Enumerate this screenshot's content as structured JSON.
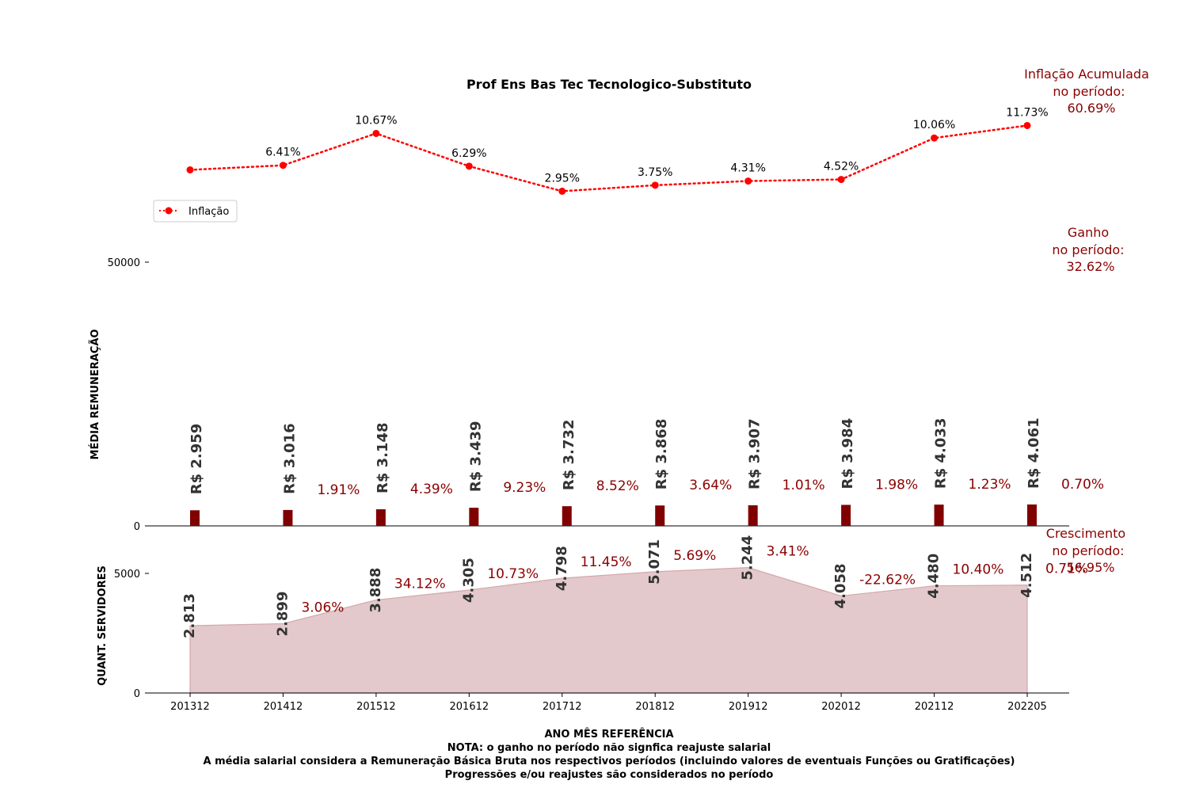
{
  "chart_data": {
    "type": "combo",
    "title": "Prof Ens Bas Tec Tecnologico-Substituto",
    "categories": [
      "201312",
      "201412",
      "201512",
      "201612",
      "201712",
      "201812",
      "201912",
      "202012",
      "202112",
      "202205"
    ],
    "inflation": {
      "name": "Inflação",
      "values": [
        null,
        6.41,
        10.67,
        6.29,
        2.95,
        3.75,
        4.31,
        4.52,
        10.06,
        11.73
      ],
      "labels": [
        "",
        "6.41%",
        "10.67%",
        "6.29%",
        "2.95%",
        "3.75%",
        "4.31%",
        "4.52%",
        "10.06%",
        "11.73%"
      ]
    },
    "salary": {
      "ylabel": "MÉDIA REMUNERAÇÃO",
      "yticks": [
        "0",
        "50000"
      ],
      "ylim": [
        0,
        50000
      ],
      "values": [
        2959,
        3016,
        3148,
        3439,
        3732,
        3868,
        3907,
        3984,
        4033,
        4061
      ],
      "labels": [
        "R$ 2.959",
        "R$ 3.016",
        "R$ 3.148",
        "R$ 3.439",
        "R$ 3.732",
        "R$ 3.868",
        "R$ 3.907",
        "R$ 3.984",
        "R$ 4.033",
        "R$ 4.061"
      ],
      "growth_labels": [
        "1.91%",
        "4.39%",
        "9.23%",
        "8.52%",
        "3.64%",
        "1.01%",
        "1.98%",
        "1.23%",
        "0.70%"
      ]
    },
    "servers": {
      "ylabel": "QUANT. SERVIDORES",
      "yticks": [
        "0",
        "5000"
      ],
      "ylim": [
        0,
        5800
      ],
      "values": [
        2813,
        2899,
        3888,
        4305,
        4798,
        5071,
        5244,
        4058,
        4480,
        4512
      ],
      "labels": [
        "2.813",
        "2.899",
        "3.888",
        "4.305",
        "4.798",
        "5.071",
        "5.244",
        "4.058",
        "4.480",
        "4.512"
      ],
      "growth_labels": [
        "3.06%",
        "34.12%",
        "10.73%",
        "11.45%",
        "5.69%",
        "3.41%",
        "-22.62%",
        "10.40%",
        "0.71%"
      ]
    },
    "xlabel": "ANO MÊS REFERÊNCIA",
    "legend": {
      "label": "Inflação",
      "position": "left"
    },
    "side_notes": {
      "inflation": [
        "Inflação Acumulada",
        "no período:",
        "60.69%"
      ],
      "gain": [
        "Ganho",
        "no período:",
        "32.62%"
      ],
      "growth": [
        "Crescimento",
        "no período:",
        "56.95%"
      ]
    },
    "footer_notes": [
      "NOTA: o ganho no período não signfica reajuste salarial",
      "A média salarial considera a Remuneração Básica Bruta nos respectivos períodos (incluindo valores de eventuais Funções ou Gratificações)",
      "Progressões e/ou reajustes são considerados no período"
    ],
    "colors": {
      "inflation": "#ff0000",
      "bars": "#800000",
      "area_fill": "#e3c9cb",
      "area_line": "#d4a6aa",
      "value_label": "#333333",
      "growth_label": "#8b0000"
    }
  }
}
